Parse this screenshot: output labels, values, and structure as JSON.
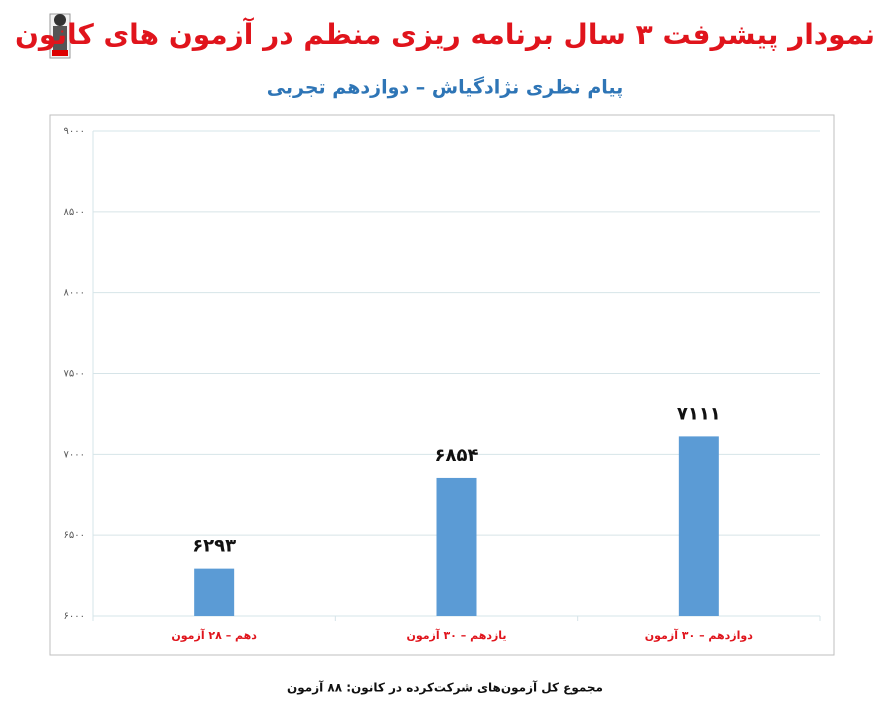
{
  "chart_data": {
    "type": "bar",
    "title": "نمودار پیشرفت ۳ سال برنامه ریزی منظم در آزمون های کانون",
    "subtitle": "پیام نظری نژادگیاش – دوازدهم تجربی",
    "categories": [
      "دهم – ۲۸ آزمون",
      "یازدهم – ۳۰ آزمون",
      "دوازدهم – ۳۰ آزمون"
    ],
    "values": [
      6293,
      6854,
      7111
    ],
    "value_labels": [
      "۶۲۹۳",
      "۶۸۵۴",
      "۷۱۱۱"
    ],
    "color": "#5b9bd5",
    "ylim": [
      6000,
      9000
    ],
    "yticks": [
      {
        "value": 6000,
        "label": "۶۰۰۰"
      },
      {
        "value": 6500,
        "label": "۶۵۰۰"
      },
      {
        "value": 7000,
        "label": "۷۰۰۰"
      },
      {
        "value": 7500,
        "label": "۷۵۰۰"
      },
      {
        "value": 8000,
        "label": "۸۰۰۰"
      },
      {
        "value": 8500,
        "label": "۸۵۰۰"
      },
      {
        "value": 9000,
        "label": "۹۰۰۰"
      }
    ],
    "grid": true,
    "footnote": "مجموع کل آزمون‌های شرکت‌کرده در کانون: ۸۸ آزمون"
  }
}
